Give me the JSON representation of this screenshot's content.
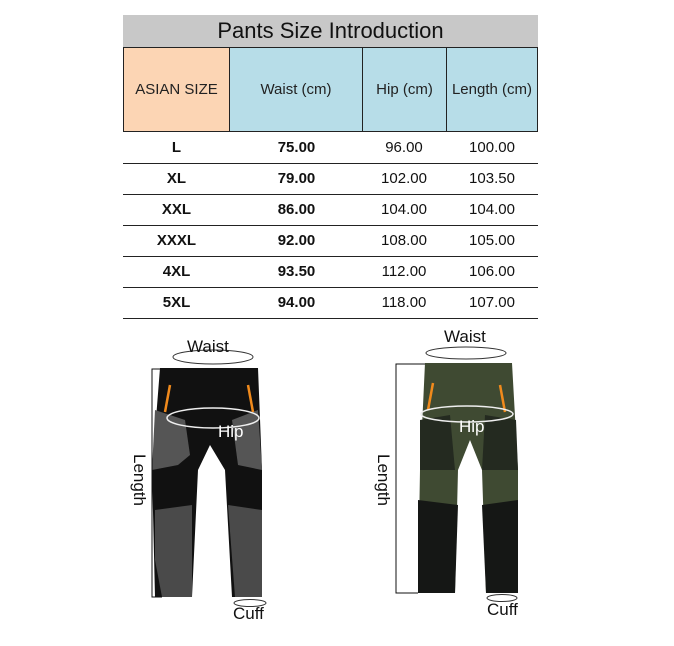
{
  "title": "Pants Size Introduction",
  "colors": {
    "size_header": "#fcd5b4",
    "measure_header": "#b7dde8",
    "title_bar": "#c8c8c8"
  },
  "headers": [
    "ASIAN SIZE",
    "Waist (cm)",
    "Hip  (cm)",
    "Length (cm)"
  ],
  "rows": [
    [
      "L",
      "75.00",
      "96.00",
      "100.00"
    ],
    [
      "XL",
      "79.00",
      "102.00",
      "103.50"
    ],
    [
      "XXL",
      "86.00",
      "104.00",
      "104.00"
    ],
    [
      "XXXL",
      "92.00",
      "108.00",
      "105.00"
    ],
    [
      "4XL",
      "93.50",
      "112.00",
      "106.00"
    ],
    [
      "5XL",
      "94.00",
      "118.00",
      "107.00"
    ]
  ],
  "diagram_labels": {
    "waist": "Waist",
    "hip": "Hip",
    "length": "Length",
    "cuff": "Cuff"
  }
}
